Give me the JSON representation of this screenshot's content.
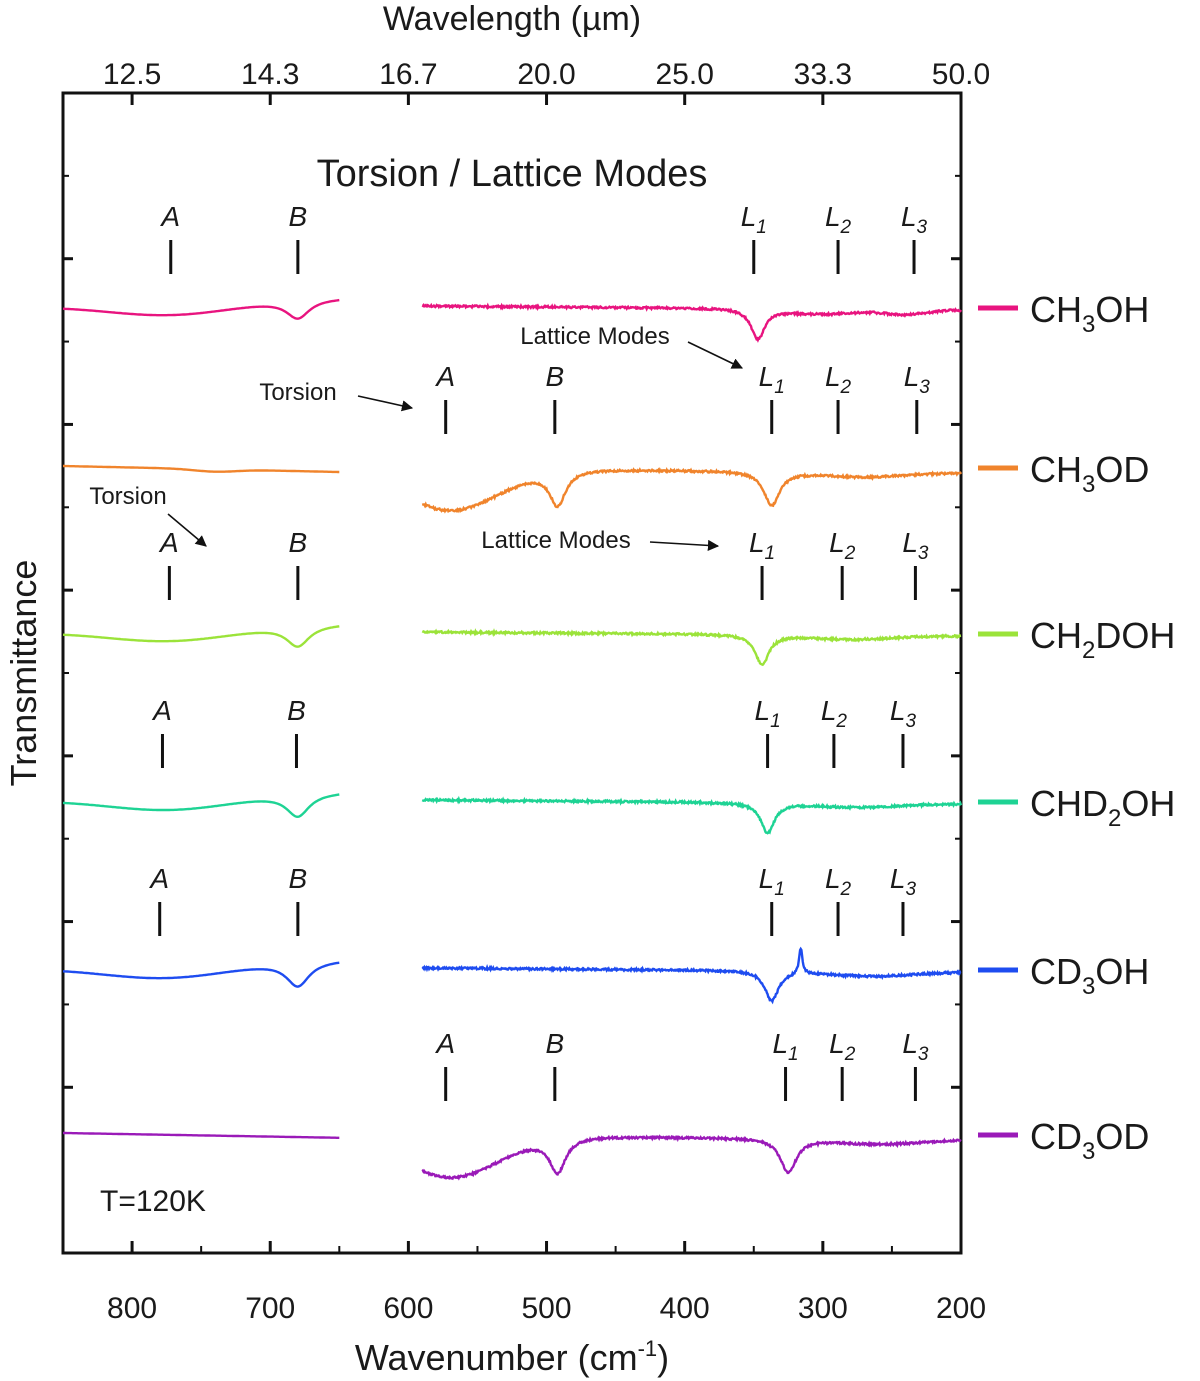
{
  "chart_data": {
    "type": "line",
    "title": "Torsion / Lattice Modes",
    "xlabel": "Wavenumber (cm",
    "xlabel_sup": "-1",
    "xlabel_close": ")",
    "ylabel": "Transmittance",
    "top_axis_label": "Wavelength (µm)",
    "xlim": [
      850,
      200
    ],
    "x_ticks": [
      800,
      700,
      600,
      500,
      400,
      300,
      200
    ],
    "x_tick_labels": [
      "800",
      "700",
      "600",
      "500",
      "400",
      "300",
      "200"
    ],
    "top_ticks": [
      {
        "x": 800,
        "label": "12.5"
      },
      {
        "x": 700,
        "label": "14.3"
      },
      {
        "x": 600,
        "label": "16.7"
      },
      {
        "x": 500,
        "label": "20.0"
      },
      {
        "x": 400,
        "label": "25.0"
      },
      {
        "x": 300,
        "label": "33.3"
      },
      {
        "x": 200,
        "label": "50.0"
      }
    ],
    "temperature_label": "T=120K",
    "segments": [
      [
        850,
        650
      ],
      [
        590,
        200
      ]
    ],
    "series": [
      {
        "name": "CH3OH",
        "label_main": "CH",
        "label_sub": "3",
        "label_tail": "OH",
        "color": "#e8147f",
        "baseline_left": 0.0,
        "slope_left": 0.2,
        "baseline_right": 0.0,
        "slope_right": -0.1,
        "left_features": [
          {
            "type": "broad",
            "center": 772,
            "width": 45,
            "depth": 0.3
          },
          {
            "type": "sharp",
            "center": 680,
            "width": 10,
            "depth": 0.45
          }
        ],
        "right_features": [
          {
            "type": "sharp",
            "center": 347,
            "width": 6,
            "depth": 0.75
          },
          {
            "type": "broad",
            "center": 300,
            "width": 25,
            "depth": 0.12
          },
          {
            "type": "broad",
            "center": 240,
            "width": 15,
            "depth": 0.12
          }
        ],
        "annotations": [
          {
            "text": "A",
            "sub": "",
            "x": 772
          },
          {
            "text": "B",
            "sub": "",
            "x": 680
          },
          {
            "text": "L",
            "sub": "1",
            "x": 350
          },
          {
            "text": "L",
            "sub": "2",
            "x": 289
          },
          {
            "text": "L",
            "sub": "3",
            "x": 234
          }
        ]
      },
      {
        "name": "CH3OD",
        "label_main": "CH",
        "label_sub": "3",
        "label_tail": "OD",
        "color": "#f0842c",
        "baseline_left": 0.0,
        "slope_left": -0.15,
        "baseline_right": -0.05,
        "slope_right": -0.12,
        "left_features": [
          {
            "type": "broad",
            "center": 740,
            "width": 15,
            "depth": 0.06
          }
        ],
        "right_features": [
          {
            "type": "broad",
            "center": 570,
            "width": 35,
            "depth": 1.05
          },
          {
            "type": "sharp",
            "center": 492,
            "width": 7,
            "depth": 0.85
          },
          {
            "type": "sharp",
            "center": 337,
            "width": 7,
            "depth": 0.85
          },
          {
            "type": "broad",
            "center": 270,
            "width": 30,
            "depth": 0.12
          }
        ],
        "annotations": [
          {
            "text": "A",
            "sub": "",
            "x": 573
          },
          {
            "text": "B",
            "sub": "",
            "x": 494
          },
          {
            "text": "L",
            "sub": "1",
            "x": 337
          },
          {
            "text": "L",
            "sub": "2",
            "x": 289
          },
          {
            "text": "L",
            "sub": "3",
            "x": 232
          }
        ]
      },
      {
        "name": "CH2DOH",
        "label_main": "CH",
        "label_sub": "2",
        "label_tail": "DOH",
        "color": "#9be33a",
        "baseline_left": 0.0,
        "slope_left": 0.2,
        "baseline_right": 0.0,
        "slope_right": -0.1,
        "left_features": [
          {
            "type": "broad",
            "center": 772,
            "width": 45,
            "depth": 0.3
          },
          {
            "type": "sharp",
            "center": 680,
            "width": 10,
            "depth": 0.5
          }
        ],
        "right_features": [
          {
            "type": "sharp",
            "center": 344,
            "width": 6,
            "depth": 0.75
          },
          {
            "type": "broad",
            "center": 280,
            "width": 30,
            "depth": 0.1
          }
        ],
        "annotations": [
          {
            "text": "A",
            "sub": "",
            "x": 773
          },
          {
            "text": "B",
            "sub": "",
            "x": 680
          },
          {
            "text": "L",
            "sub": "1",
            "x": 344
          },
          {
            "text": "L",
            "sub": "2",
            "x": 286
          },
          {
            "text": "L",
            "sub": "3",
            "x": 233
          }
        ]
      },
      {
        "name": "CHD2OH",
        "label_main": "CHD",
        "label_sub": "2",
        "label_tail": "OH",
        "color": "#1ed394",
        "baseline_left": 0.0,
        "slope_left": 0.2,
        "baseline_right": 0.0,
        "slope_right": -0.1,
        "left_features": [
          {
            "type": "broad",
            "center": 772,
            "width": 45,
            "depth": 0.32
          },
          {
            "type": "sharp",
            "center": 680,
            "width": 10,
            "depth": 0.55
          }
        ],
        "right_features": [
          {
            "type": "sharp",
            "center": 340,
            "width": 6,
            "depth": 0.75
          },
          {
            "type": "broad",
            "center": 275,
            "width": 30,
            "depth": 0.1
          }
        ],
        "annotations": [
          {
            "text": "A",
            "sub": "",
            "x": 778
          },
          {
            "text": "B",
            "sub": "",
            "x": 681
          },
          {
            "text": "L",
            "sub": "1",
            "x": 340
          },
          {
            "text": "L",
            "sub": "2",
            "x": 292
          },
          {
            "text": "L",
            "sub": "3",
            "x": 242
          }
        ]
      },
      {
        "name": "CD3OH",
        "label_main": "CD",
        "label_sub": "3",
        "label_tail": "OH",
        "color": "#1e4cf0",
        "baseline_left": 0.0,
        "slope_left": 0.2,
        "baseline_right": 0.0,
        "slope_right": -0.1,
        "left_features": [
          {
            "type": "broad",
            "center": 775,
            "width": 45,
            "depth": 0.32
          },
          {
            "type": "sharp",
            "center": 680,
            "width": 10,
            "depth": 0.6
          }
        ],
        "right_features": [
          {
            "type": "sharp",
            "center": 337,
            "width": 6,
            "depth": 0.75
          },
          {
            "type": "spike",
            "center": 316,
            "width": 1.5,
            "depth": -0.65
          },
          {
            "type": "broad",
            "center": 265,
            "width": 30,
            "depth": 0.12
          }
        ],
        "annotations": [
          {
            "text": "A",
            "sub": "",
            "x": 780
          },
          {
            "text": "B",
            "sub": "",
            "x": 680
          },
          {
            "text": "L",
            "sub": "1",
            "x": 337
          },
          {
            "text": "L",
            "sub": "2",
            "x": 289
          },
          {
            "text": "L",
            "sub": "3",
            "x": 242
          }
        ]
      },
      {
        "name": "CD3OD",
        "label_main": "CD",
        "label_sub": "3",
        "label_tail": "OD",
        "color": "#9a1ab8",
        "baseline_left": 0.0,
        "slope_left": -0.12,
        "baseline_right": -0.05,
        "slope_right": -0.12,
        "left_features": [],
        "right_features": [
          {
            "type": "broad",
            "center": 570,
            "width": 35,
            "depth": 1.05
          },
          {
            "type": "sharp",
            "center": 492,
            "width": 7,
            "depth": 0.85
          },
          {
            "type": "sharp",
            "center": 325,
            "width": 7,
            "depth": 0.85
          },
          {
            "type": "broad",
            "center": 260,
            "width": 30,
            "depth": 0.12
          }
        ],
        "annotations": [
          {
            "text": "A",
            "sub": "",
            "x": 573
          },
          {
            "text": "B",
            "sub": "",
            "x": 494
          },
          {
            "text": "L",
            "sub": "1",
            "x": 327
          },
          {
            "text": "L",
            "sub": "2",
            "x": 286
          },
          {
            "text": "L",
            "sub": "3",
            "x": 233
          }
        ]
      }
    ],
    "arrows": [
      {
        "text": "Torsion",
        "series": 0,
        "target_x": 583
      },
      {
        "text": "Lattice Modes",
        "series": 0,
        "target_x": 355
      },
      {
        "text": "Torsion",
        "series": 1,
        "target_x": 770
      },
      {
        "text": "Lattice Modes",
        "series": 1,
        "target_x": 362
      }
    ]
  }
}
